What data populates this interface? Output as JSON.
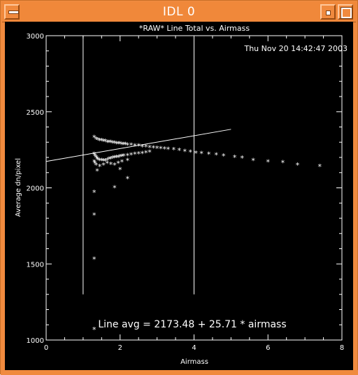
{
  "window": {
    "title": "IDL 0",
    "controls": {
      "menu_icon": "window-menu-icon",
      "minimize_icon": "minimize-icon",
      "maximize_icon": "maximize-icon"
    }
  },
  "plot": {
    "title": "*RAW* Line Total vs. Airmass",
    "timestamp": "Thu Nov 20 14:42:47 2003",
    "fit_text": "Line avg = 2173.48 + 25.71 * airmass",
    "colors": {
      "background": "#000000",
      "foreground": "#ffffff"
    }
  },
  "chart_data": {
    "type": "scatter",
    "title": "*RAW* Line Total vs. Airmass",
    "xlabel": "Airmass",
    "ylabel": "Average dn/pixel",
    "xlim": [
      0,
      8
    ],
    "ylim": [
      1000,
      3000
    ],
    "xticks": [
      0,
      2,
      4,
      6,
      8
    ],
    "yticks": [
      1000,
      1500,
      2000,
      2500,
      3000
    ],
    "marker": "*",
    "series": [
      {
        "points": [
          [
            1.3,
            2330
          ],
          [
            1.35,
            2320
          ],
          [
            1.4,
            2315
          ],
          [
            1.45,
            2310
          ],
          [
            1.5,
            2310
          ],
          [
            1.55,
            2305
          ],
          [
            1.6,
            2305
          ],
          [
            1.65,
            2300
          ],
          [
            1.7,
            2300
          ],
          [
            1.75,
            2300
          ],
          [
            1.8,
            2295
          ],
          [
            1.85,
            2295
          ],
          [
            1.9,
            2290
          ],
          [
            1.95,
            2290
          ],
          [
            2.0,
            2290
          ],
          [
            2.05,
            2285
          ],
          [
            2.1,
            2285
          ],
          [
            2.15,
            2285
          ],
          [
            2.2,
            2280
          ],
          [
            2.3,
            2280
          ],
          [
            2.4,
            2275
          ],
          [
            2.5,
            2275
          ],
          [
            2.6,
            2270
          ],
          [
            2.7,
            2268
          ],
          [
            2.8,
            2265
          ],
          [
            2.9,
            2262
          ],
          [
            3.0,
            2260
          ],
          [
            3.1,
            2258
          ],
          [
            3.2,
            2255
          ],
          [
            3.3,
            2252
          ],
          [
            3.45,
            2250
          ],
          [
            3.6,
            2245
          ],
          [
            3.75,
            2240
          ],
          [
            3.9,
            2235
          ],
          [
            4.05,
            2228
          ],
          [
            4.2,
            2225
          ],
          [
            4.4,
            2220
          ],
          [
            4.6,
            2215
          ],
          [
            4.8,
            2210
          ],
          [
            5.1,
            2200
          ],
          [
            5.3,
            2195
          ],
          [
            5.6,
            2180
          ],
          [
            6.0,
            2170
          ],
          [
            6.4,
            2165
          ],
          [
            6.8,
            2150
          ],
          [
            7.4,
            2140
          ],
          [
            1.3,
            2220
          ],
          [
            1.32,
            2210
          ],
          [
            1.35,
            2200
          ],
          [
            1.38,
            2190
          ],
          [
            1.4,
            2185
          ],
          [
            1.45,
            2180
          ],
          [
            1.5,
            2180
          ],
          [
            1.55,
            2178
          ],
          [
            1.6,
            2178
          ],
          [
            1.65,
            2182
          ],
          [
            1.7,
            2188
          ],
          [
            1.75,
            2190
          ],
          [
            1.8,
            2195
          ],
          [
            1.85,
            2198
          ],
          [
            1.9,
            2200
          ],
          [
            1.95,
            2200
          ],
          [
            2.0,
            2205
          ],
          [
            2.05,
            2208
          ],
          [
            2.1,
            2210
          ],
          [
            2.2,
            2212
          ],
          [
            2.3,
            2215
          ],
          [
            2.4,
            2220
          ],
          [
            2.5,
            2222
          ],
          [
            2.6,
            2225
          ],
          [
            2.7,
            2230
          ],
          [
            2.8,
            2235
          ],
          [
            1.3,
            2170
          ],
          [
            1.32,
            2160
          ],
          [
            1.35,
            2150
          ],
          [
            1.45,
            2140
          ],
          [
            1.55,
            2150
          ],
          [
            1.65,
            2160
          ],
          [
            1.75,
            2155
          ],
          [
            1.85,
            2150
          ],
          [
            1.95,
            2160
          ],
          [
            2.05,
            2170
          ],
          [
            2.2,
            2180
          ],
          [
            1.38,
            2110
          ],
          [
            1.85,
            2000
          ],
          [
            2.0,
            2120
          ],
          [
            2.2,
            2060
          ],
          [
            1.3,
            1970
          ],
          [
            1.3,
            1820
          ],
          [
            1.3,
            1530
          ],
          [
            1.3,
            1070
          ]
        ]
      }
    ],
    "vlines": [
      1.0,
      4.0
    ],
    "fit": {
      "intercept": 2173.48,
      "slope": 25.71,
      "x_range": [
        0.0,
        5.0
      ]
    },
    "grid": false
  }
}
